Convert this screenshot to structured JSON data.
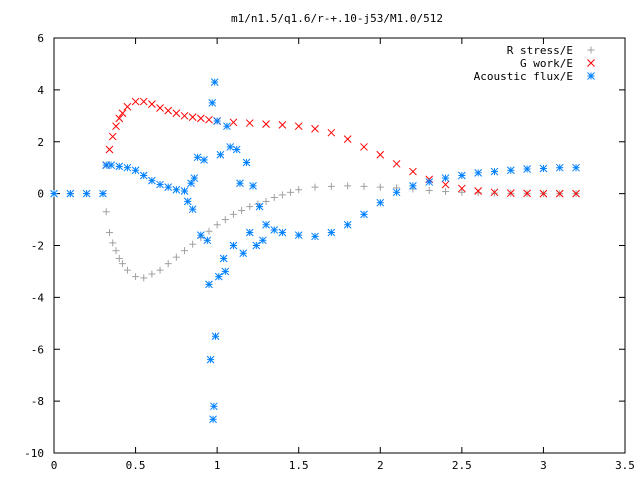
{
  "chart_data": {
    "type": "scatter",
    "title": "m1/n1.5/q1.6/r-+.10-j53/M1.0/512",
    "xlabel": "",
    "ylabel": "",
    "xlim": [
      0,
      3.5
    ],
    "ylim": [
      -10,
      6
    ],
    "xticks": [
      0,
      0.5,
      1,
      1.5,
      2,
      2.5,
      3,
      3.5
    ],
    "xtick_labels": [
      "0",
      "0.5",
      "1",
      "1.5",
      "2",
      "2.5",
      "3",
      "3.5"
    ],
    "yticks": [
      -10,
      -8,
      -6,
      -4,
      -2,
      0,
      2,
      4,
      6
    ],
    "ytick_labels": [
      "-10",
      "-8",
      "-6",
      "-4",
      "-2",
      "0",
      "2",
      "4",
      "6"
    ],
    "grid": false,
    "legend_position": "top-right",
    "series": [
      {
        "name": "R stress/E",
        "marker": "plus",
        "color": "#a0a0a0",
        "points": [
          [
            0.0,
            0.0
          ],
          [
            0.1,
            0.0
          ],
          [
            0.2,
            0.0
          ],
          [
            0.3,
            0.0
          ],
          [
            0.32,
            -0.7
          ],
          [
            0.34,
            -1.5
          ],
          [
            0.36,
            -1.9
          ],
          [
            0.38,
            -2.2
          ],
          [
            0.4,
            -2.5
          ],
          [
            0.42,
            -2.7
          ],
          [
            0.45,
            -2.95
          ],
          [
            0.5,
            -3.2
          ],
          [
            0.55,
            -3.25
          ],
          [
            0.6,
            -3.1
          ],
          [
            0.65,
            -2.95
          ],
          [
            0.7,
            -2.7
          ],
          [
            0.75,
            -2.45
          ],
          [
            0.8,
            -2.2
          ],
          [
            0.85,
            -1.95
          ],
          [
            0.9,
            -1.7
          ],
          [
            0.95,
            -1.45
          ],
          [
            1.0,
            -1.2
          ],
          [
            1.05,
            -1.0
          ],
          [
            1.1,
            -0.8
          ],
          [
            1.15,
            -0.65
          ],
          [
            1.2,
            -0.5
          ],
          [
            1.25,
            -0.4
          ],
          [
            1.3,
            -0.3
          ],
          [
            1.35,
            -0.15
          ],
          [
            1.4,
            -0.05
          ],
          [
            1.45,
            0.05
          ],
          [
            1.5,
            0.15
          ],
          [
            1.6,
            0.25
          ],
          [
            1.7,
            0.28
          ],
          [
            1.8,
            0.3
          ],
          [
            1.9,
            0.28
          ],
          [
            2.0,
            0.25
          ],
          [
            2.1,
            0.22
          ],
          [
            2.2,
            0.18
          ],
          [
            2.3,
            0.12
          ],
          [
            2.4,
            0.08
          ],
          [
            2.5,
            0.05
          ],
          [
            2.6,
            0.03
          ],
          [
            2.7,
            0.02
          ],
          [
            2.8,
            0.01
          ],
          [
            2.9,
            0.0
          ],
          [
            3.0,
            0.0
          ],
          [
            3.1,
            0.0
          ],
          [
            3.2,
            0.0
          ]
        ]
      },
      {
        "name": "G work/E",
        "marker": "cross",
        "color": "#ff0000",
        "points": [
          [
            0.32,
            1.1
          ],
          [
            0.34,
            1.7
          ],
          [
            0.36,
            2.2
          ],
          [
            0.38,
            2.6
          ],
          [
            0.4,
            2.9
          ],
          [
            0.42,
            3.1
          ],
          [
            0.45,
            3.35
          ],
          [
            0.5,
            3.55
          ],
          [
            0.55,
            3.55
          ],
          [
            0.6,
            3.45
          ],
          [
            0.65,
            3.3
          ],
          [
            0.7,
            3.2
          ],
          [
            0.75,
            3.1
          ],
          [
            0.8,
            3.0
          ],
          [
            0.85,
            2.95
          ],
          [
            0.9,
            2.9
          ],
          [
            0.95,
            2.85
          ],
          [
            1.0,
            2.8
          ],
          [
            1.1,
            2.75
          ],
          [
            1.2,
            2.72
          ],
          [
            1.3,
            2.68
          ],
          [
            1.4,
            2.65
          ],
          [
            1.5,
            2.6
          ],
          [
            1.6,
            2.5
          ],
          [
            1.7,
            2.35
          ],
          [
            1.8,
            2.1
          ],
          [
            1.9,
            1.8
          ],
          [
            2.0,
            1.5
          ],
          [
            2.1,
            1.15
          ],
          [
            2.2,
            0.85
          ],
          [
            2.3,
            0.55
          ],
          [
            2.4,
            0.35
          ],
          [
            2.5,
            0.2
          ],
          [
            2.6,
            0.1
          ],
          [
            2.7,
            0.05
          ],
          [
            2.8,
            0.02
          ],
          [
            2.9,
            0.01
          ],
          [
            3.0,
            0.0
          ],
          [
            3.1,
            0.0
          ],
          [
            3.2,
            0.0
          ]
        ]
      },
      {
        "name": "Acoustic flux/E",
        "marker": "star",
        "color": "#0080ff",
        "points": [
          [
            0.0,
            0.0
          ],
          [
            0.1,
            0.0
          ],
          [
            0.2,
            0.0
          ],
          [
            0.3,
            0.0
          ],
          [
            0.32,
            1.1
          ],
          [
            0.35,
            1.1
          ],
          [
            0.4,
            1.05
          ],
          [
            0.45,
            1.0
          ],
          [
            0.5,
            0.9
          ],
          [
            0.55,
            0.7
          ],
          [
            0.6,
            0.5
          ],
          [
            0.65,
            0.35
          ],
          [
            0.7,
            0.25
          ],
          [
            0.75,
            0.15
          ],
          [
            0.8,
            0.1
          ],
          [
            0.82,
            -0.3
          ],
          [
            0.84,
            0.4
          ],
          [
            0.85,
            -0.6
          ],
          [
            0.86,
            0.6
          ],
          [
            0.88,
            1.4
          ],
          [
            0.9,
            -1.6
          ],
          [
            0.92,
            1.3
          ],
          [
            0.94,
            -1.8
          ],
          [
            0.95,
            -3.5
          ],
          [
            0.96,
            -6.4
          ],
          [
            0.97,
            3.5
          ],
          [
            0.975,
            -8.7
          ],
          [
            0.98,
            -8.2
          ],
          [
            0.985,
            4.3
          ],
          [
            0.99,
            -5.5
          ],
          [
            1.0,
            2.8
          ],
          [
            1.01,
            -3.2
          ],
          [
            1.02,
            1.5
          ],
          [
            1.04,
            -2.5
          ],
          [
            1.05,
            -3.0
          ],
          [
            1.06,
            2.6
          ],
          [
            1.08,
            1.8
          ],
          [
            1.1,
            -2.0
          ],
          [
            1.12,
            1.7
          ],
          [
            1.14,
            0.4
          ],
          [
            1.16,
            -2.3
          ],
          [
            1.18,
            1.2
          ],
          [
            1.2,
            -1.5
          ],
          [
            1.22,
            0.3
          ],
          [
            1.24,
            -2.0
          ],
          [
            1.26,
            -0.5
          ],
          [
            1.28,
            -1.8
          ],
          [
            1.3,
            -1.2
          ],
          [
            1.35,
            -1.4
          ],
          [
            1.4,
            -1.5
          ],
          [
            1.5,
            -1.6
          ],
          [
            1.6,
            -1.65
          ],
          [
            1.7,
            -1.5
          ],
          [
            1.8,
            -1.2
          ],
          [
            1.9,
            -0.8
          ],
          [
            2.0,
            -0.35
          ],
          [
            2.1,
            0.05
          ],
          [
            2.2,
            0.3
          ],
          [
            2.3,
            0.45
          ],
          [
            2.4,
            0.6
          ],
          [
            2.5,
            0.7
          ],
          [
            2.6,
            0.8
          ],
          [
            2.7,
            0.85
          ],
          [
            2.8,
            0.9
          ],
          [
            2.9,
            0.95
          ],
          [
            3.0,
            0.97
          ],
          [
            3.1,
            1.0
          ],
          [
            3.2,
            1.0
          ]
        ]
      }
    ]
  }
}
